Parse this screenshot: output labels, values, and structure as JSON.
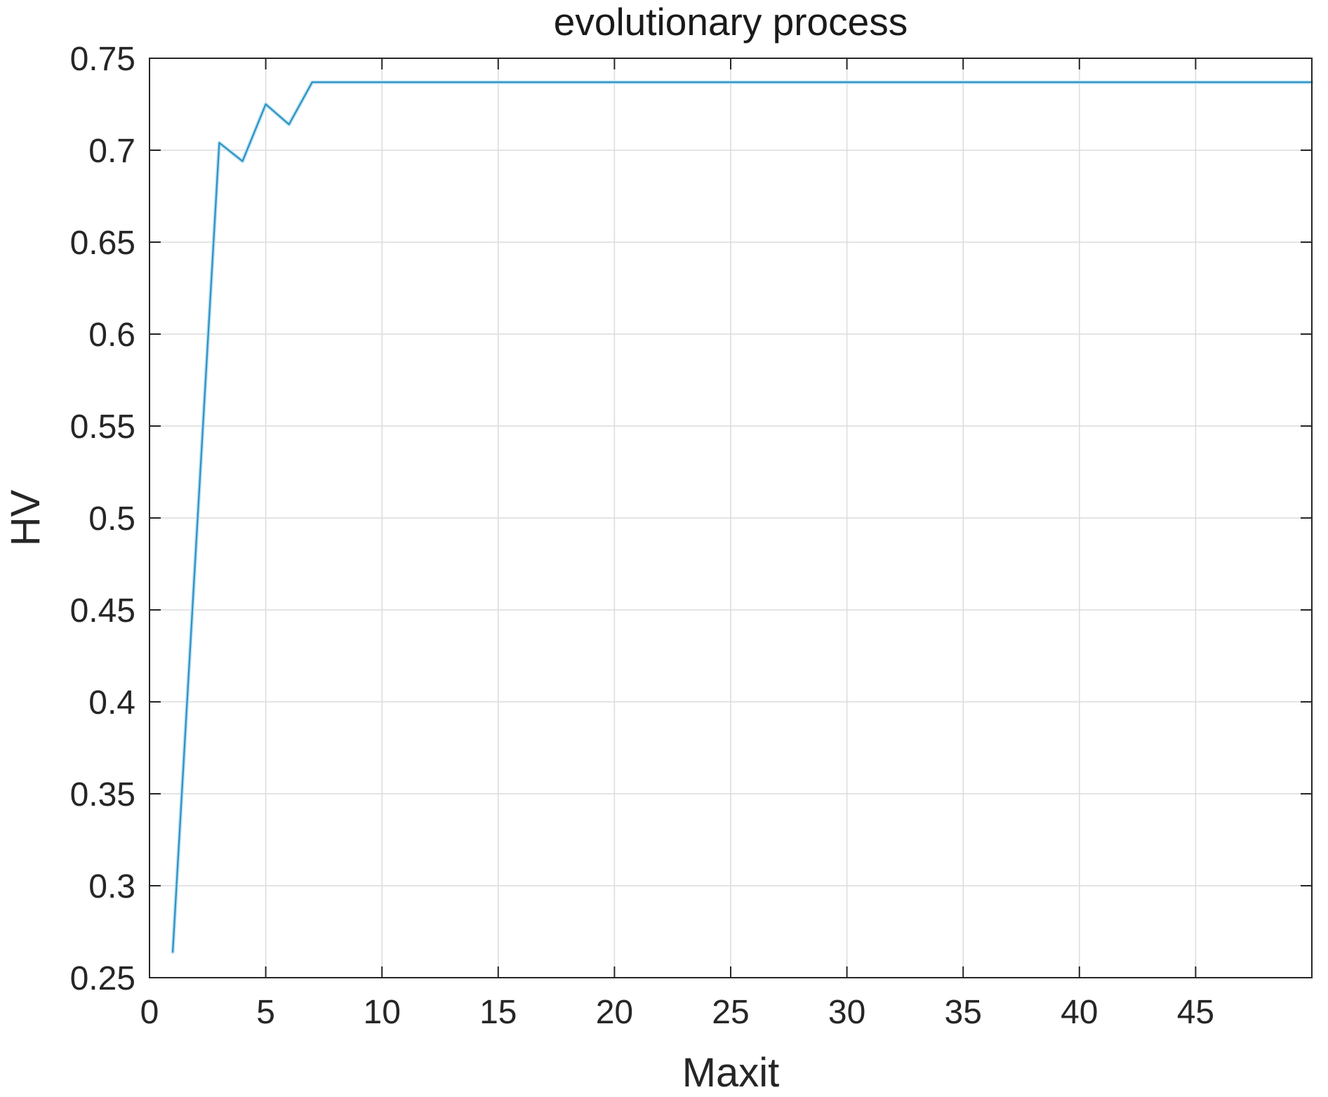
{
  "chart_data": {
    "type": "line",
    "title": "evolutionary process",
    "xlabel": "Maxit",
    "ylabel": "HV",
    "xlim": [
      0,
      50
    ],
    "ylim": [
      0.25,
      0.75
    ],
    "xticks": [
      0,
      5,
      10,
      15,
      20,
      25,
      30,
      35,
      40,
      45
    ],
    "xtick_labels": [
      "0",
      "5",
      "10",
      "15",
      "20",
      "25",
      "30",
      "35",
      "40",
      "45"
    ],
    "yticks": [
      0.25,
      0.3,
      0.35,
      0.4,
      0.45,
      0.5,
      0.55,
      0.6,
      0.65,
      0.7,
      0.75
    ],
    "ytick_labels": [
      "0.25",
      "0.3",
      "0.35",
      "0.4",
      "0.45",
      "0.5",
      "0.55",
      "0.6",
      "0.65",
      "0.7",
      "0.75"
    ],
    "grid": true,
    "legend_position": "none",
    "series": [
      {
        "name": "HV",
        "x": [
          1,
          2,
          3,
          4,
          5,
          6,
          7,
          8,
          9,
          10,
          11,
          12,
          13,
          14,
          15,
          16,
          17,
          18,
          19,
          20,
          21,
          22,
          23,
          24,
          25,
          26,
          27,
          28,
          29,
          30,
          31,
          32,
          33,
          34,
          35,
          36,
          37,
          38,
          39,
          40,
          41,
          42,
          43,
          44,
          45,
          46,
          47,
          48,
          49,
          50
        ],
        "y": [
          0.264,
          0.484,
          0.704,
          0.694,
          0.725,
          0.714,
          0.737,
          0.737,
          0.737,
          0.737,
          0.737,
          0.737,
          0.737,
          0.737,
          0.737,
          0.737,
          0.737,
          0.737,
          0.737,
          0.737,
          0.737,
          0.737,
          0.737,
          0.737,
          0.737,
          0.737,
          0.737,
          0.737,
          0.737,
          0.737,
          0.737,
          0.737,
          0.737,
          0.737,
          0.737,
          0.737,
          0.737,
          0.737,
          0.737,
          0.737,
          0.737,
          0.737,
          0.737,
          0.737,
          0.737,
          0.737,
          0.737,
          0.737,
          0.737,
          0.737
        ]
      }
    ]
  },
  "style": {
    "background_color": "#ffffff",
    "line_color": "#2e93c4",
    "line_halo_color": "#c2e4f4",
    "axis_color": "#262626",
    "grid_color": "#dcdcdc",
    "tick_label_color": "#262626",
    "title_color": "#1a1a1a"
  }
}
